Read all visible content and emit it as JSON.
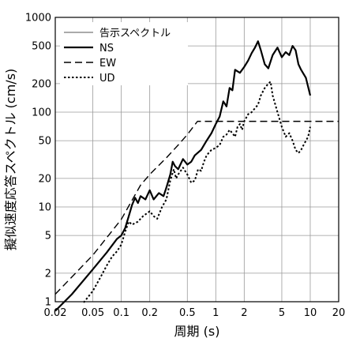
{
  "chart_data": {
    "type": "line",
    "xlabel": "周期 (s)",
    "ylabel": "擬似速度応答スペクトル (cm/s)",
    "xscale": "log",
    "yscale": "log",
    "xlim": [
      0.02,
      20
    ],
    "ylim": [
      1,
      1000
    ],
    "grid": true,
    "legend_position": "top-left",
    "x_ticks": [
      {
        "value": 0.02,
        "label": "0.02"
      },
      {
        "value": 0.05,
        "label": "0.05"
      },
      {
        "value": 0.1,
        "label": "0.1"
      },
      {
        "value": 0.2,
        "label": "0.2"
      },
      {
        "value": 0.5,
        "label": "0.5"
      },
      {
        "value": 1,
        "label": "1"
      },
      {
        "value": 2,
        "label": "2"
      },
      {
        "value": 5,
        "label": "5"
      },
      {
        "value": 10,
        "label": "10"
      },
      {
        "value": 20,
        "label": "20"
      }
    ],
    "y_ticks": [
      {
        "value": 1,
        "label": "1"
      },
      {
        "value": 2,
        "label": "2"
      },
      {
        "value": 5,
        "label": "5"
      },
      {
        "value": 10,
        "label": "10"
      },
      {
        "value": 20,
        "label": "20"
      },
      {
        "value": 50,
        "label": "50"
      },
      {
        "value": 100,
        "label": "100"
      },
      {
        "value": 200,
        "label": "200"
      },
      {
        "value": 500,
        "label": "500"
      },
      {
        "value": 1000,
        "label": "1000"
      }
    ],
    "series": [
      {
        "name": "告示スペクトル",
        "color": "#aaaaaa",
        "dash": "solid",
        "width": 2,
        "points": []
      },
      {
        "name": "NS",
        "color": "#000000",
        "dash": "solid",
        "width": 2.2,
        "points": [
          [
            0.02,
            0.8
          ],
          [
            0.03,
            1.2
          ],
          [
            0.05,
            2.2
          ],
          [
            0.07,
            3.3
          ],
          [
            0.09,
            4.6
          ],
          [
            0.1,
            5.0
          ],
          [
            0.11,
            6.0
          ],
          [
            0.12,
            8.0
          ],
          [
            0.13,
            10.5
          ],
          [
            0.14,
            12.5
          ],
          [
            0.15,
            11.0
          ],
          [
            0.16,
            13.0
          ],
          [
            0.18,
            12.0
          ],
          [
            0.2,
            15.0
          ],
          [
            0.22,
            12.0
          ],
          [
            0.25,
            14.0
          ],
          [
            0.28,
            13.0
          ],
          [
            0.3,
            16.0
          ],
          [
            0.33,
            22.0
          ],
          [
            0.35,
            30.0
          ],
          [
            0.37,
            27.0
          ],
          [
            0.4,
            25.0
          ],
          [
            0.45,
            32.0
          ],
          [
            0.5,
            28.0
          ],
          [
            0.55,
            30.0
          ],
          [
            0.6,
            35.0
          ],
          [
            0.7,
            40.0
          ],
          [
            0.8,
            50.0
          ],
          [
            0.9,
            60.0
          ],
          [
            1.0,
            75.0
          ],
          [
            1.1,
            90.0
          ],
          [
            1.2,
            130.0
          ],
          [
            1.3,
            115.0
          ],
          [
            1.4,
            180.0
          ],
          [
            1.5,
            170.0
          ],
          [
            1.6,
            280.0
          ],
          [
            1.8,
            260.0
          ],
          [
            2.0,
            300.0
          ],
          [
            2.2,
            350.0
          ],
          [
            2.4,
            420.0
          ],
          [
            2.6,
            480.0
          ],
          [
            2.8,
            560.0
          ],
          [
            3.0,
            450.0
          ],
          [
            3.3,
            320.0
          ],
          [
            3.6,
            290.0
          ],
          [
            4.0,
            400.0
          ],
          [
            4.5,
            480.0
          ],
          [
            5.0,
            380.0
          ],
          [
            5.5,
            430.0
          ],
          [
            6.0,
            400.0
          ],
          [
            6.5,
            500.0
          ],
          [
            7.0,
            450.0
          ],
          [
            7.5,
            320.0
          ],
          [
            8.0,
            280.0
          ],
          [
            9.0,
            230.0
          ],
          [
            10.0,
            150.0
          ]
        ]
      },
      {
        "name": "EW",
        "color": "#000000",
        "dash": "9,5",
        "width": 1.4,
        "points": [
          [
            0.02,
            1.2
          ],
          [
            0.05,
            3.1
          ],
          [
            0.1,
            7.4
          ],
          [
            0.16,
            17.0
          ],
          [
            0.2,
            22.0
          ],
          [
            0.3,
            33.0
          ],
          [
            0.4,
            45.0
          ],
          [
            0.5,
            58.0
          ],
          [
            0.64,
            80.0
          ],
          [
            1.0,
            80.0
          ],
          [
            2.0,
            80.0
          ],
          [
            5.0,
            80.0
          ],
          [
            10.0,
            80.0
          ],
          [
            20.0,
            80.0
          ]
        ]
      },
      {
        "name": "UD",
        "color": "#000000",
        "dash": "2.5,2.5",
        "width": 2,
        "points": [
          [
            0.04,
            0.98
          ],
          [
            0.05,
            1.3
          ],
          [
            0.06,
            1.8
          ],
          [
            0.07,
            2.4
          ],
          [
            0.08,
            3.0
          ],
          [
            0.09,
            3.4
          ],
          [
            0.1,
            4.0
          ],
          [
            0.11,
            5.5
          ],
          [
            0.12,
            7.0
          ],
          [
            0.13,
            6.5
          ],
          [
            0.15,
            7.0
          ],
          [
            0.17,
            8.0
          ],
          [
            0.2,
            9.0
          ],
          [
            0.22,
            8.0
          ],
          [
            0.24,
            7.5
          ],
          [
            0.27,
            10.0
          ],
          [
            0.3,
            12.0
          ],
          [
            0.33,
            19.0
          ],
          [
            0.36,
            25.0
          ],
          [
            0.38,
            20.0
          ],
          [
            0.4,
            22.0
          ],
          [
            0.45,
            26.0
          ],
          [
            0.5,
            22.0
          ],
          [
            0.55,
            18.0
          ],
          [
            0.6,
            19.0
          ],
          [
            0.65,
            25.0
          ],
          [
            0.7,
            24.0
          ],
          [
            0.75,
            30.0
          ],
          [
            0.8,
            35.0
          ],
          [
            0.9,
            40.0
          ],
          [
            1.0,
            42.0
          ],
          [
            1.1,
            45.0
          ],
          [
            1.2,
            55.0
          ],
          [
            1.3,
            58.0
          ],
          [
            1.4,
            65.0
          ],
          [
            1.5,
            60.0
          ],
          [
            1.6,
            55.0
          ],
          [
            1.7,
            70.0
          ],
          [
            1.8,
            75.0
          ],
          [
            1.9,
            65.0
          ],
          [
            2.0,
            80.0
          ],
          [
            2.2,
            95.0
          ],
          [
            2.4,
            100.0
          ],
          [
            2.6,
            110.0
          ],
          [
            2.8,
            120.0
          ],
          [
            3.0,
            150.0
          ],
          [
            3.3,
            180.0
          ],
          [
            3.6,
            200.0
          ],
          [
            3.8,
            210.0
          ],
          [
            4.0,
            150.0
          ],
          [
            4.5,
            100.0
          ],
          [
            5.0,
            70.0
          ],
          [
            5.5,
            55.0
          ],
          [
            6.0,
            60.0
          ],
          [
            6.5,
            50.0
          ],
          [
            7.0,
            40.0
          ],
          [
            7.5,
            37.0
          ],
          [
            8.0,
            40.0
          ],
          [
            8.5,
            45.0
          ],
          [
            9.0,
            50.0
          ],
          [
            9.5,
            55.0
          ],
          [
            10.0,
            70.0
          ]
        ]
      }
    ]
  }
}
